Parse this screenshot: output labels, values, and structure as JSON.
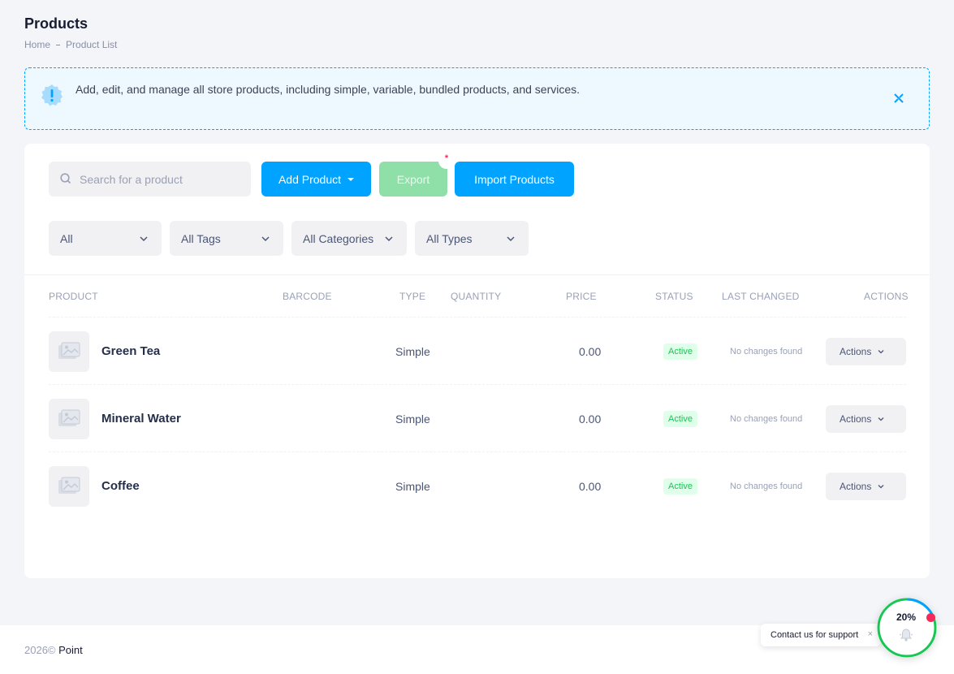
{
  "header": {
    "title": "Products",
    "breadcrumb": [
      "Home",
      "Product List"
    ]
  },
  "notice": {
    "text": "Add, edit, and manage all store products, including simple, variable, bundled products, and services.",
    "icon": "exclamation-badge-icon"
  },
  "toolbar": {
    "search_placeholder": "Search for a product",
    "add_label": "Add Product",
    "export_label": "Export",
    "export_badge": "*",
    "import_label": "Import Products"
  },
  "filters": [
    "All",
    "All Tags",
    "All Categories",
    "All Types"
  ],
  "table": {
    "columns": [
      "PRODUCT",
      "BARCODE",
      "TYPE",
      "QUANTITY",
      "PRICE",
      "STATUS",
      "LAST CHANGED",
      "ACTIONS"
    ],
    "rows": [
      {
        "name": "Green Tea",
        "barcode": "",
        "type": "Simple",
        "quantity": "",
        "price": "0.00",
        "status": "Active",
        "last_changed": "No changes found",
        "actions": "Actions"
      },
      {
        "name": "Mineral Water",
        "barcode": "",
        "type": "Simple",
        "quantity": "",
        "price": "0.00",
        "status": "Active",
        "last_changed": "No changes found",
        "actions": "Actions"
      },
      {
        "name": "Coffee",
        "barcode": "",
        "type": "Simple",
        "quantity": "",
        "price": "0.00",
        "status": "Active",
        "last_changed": "No changes found",
        "actions": "Actions"
      }
    ]
  },
  "footer": {
    "year": "2026©",
    "brand": "Point"
  },
  "support": {
    "tooltip": "Contact us for support",
    "close": "×",
    "progress_label": "20%",
    "progress": 0.2
  },
  "colors": {
    "primary": "#00a3ff",
    "success": "#17c653",
    "danger": "#f8285a",
    "export_disabled": "#8fe0a8"
  }
}
